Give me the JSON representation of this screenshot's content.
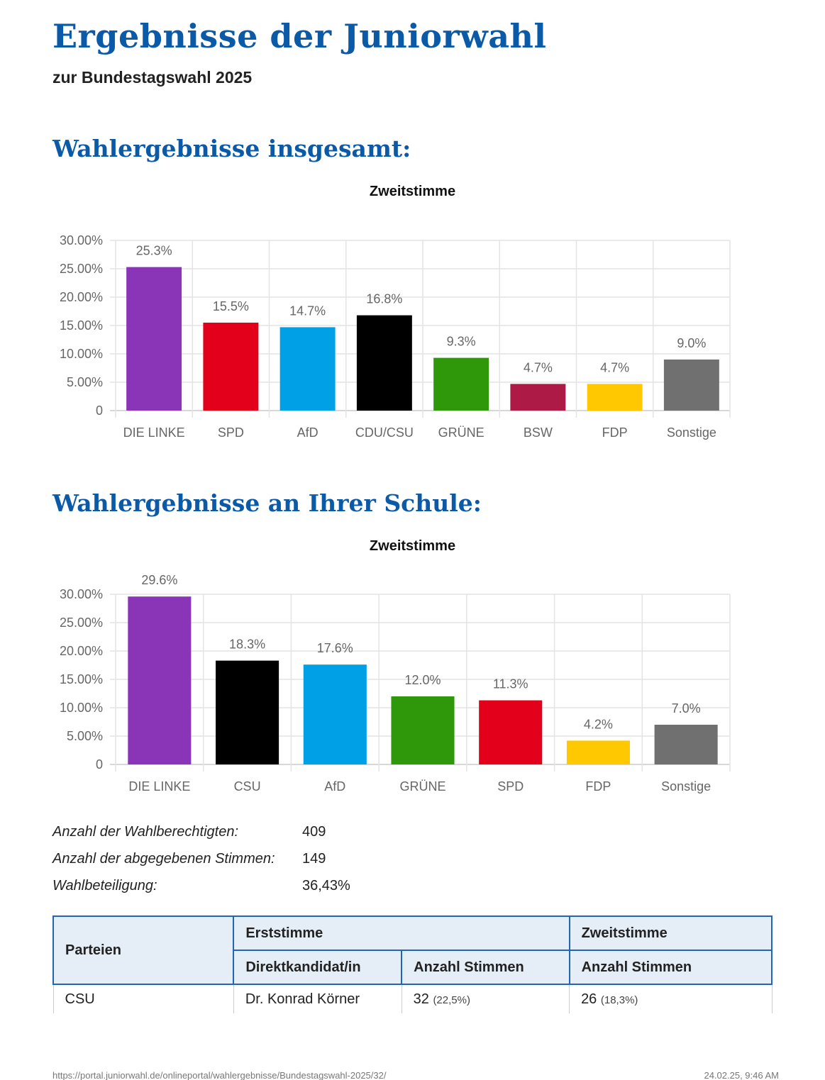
{
  "header": {
    "title": "Ergebnisse der Juniorwahl",
    "subtitle": "zur Bundestagswahl 2025"
  },
  "section1": {
    "heading": "Wahlergebnisse insgesamt:"
  },
  "section2": {
    "heading": "Wahlergebnisse an Ihrer Schule:"
  },
  "chart_data": [
    {
      "type": "bar",
      "title": "Zweitstimme",
      "xlabel": "",
      "ylabel": "",
      "ylim": [
        0,
        30
      ],
      "grid": true,
      "yticks": [
        "0",
        "5.00%",
        "10.00%",
        "15.00%",
        "20.00%",
        "25.00%",
        "30.00%"
      ],
      "categories": [
        "DIE LINKE",
        "SPD",
        "AfD",
        "CDU/CSU",
        "GRÜNE",
        "BSW",
        "FDP",
        "Sonstige"
      ],
      "values": [
        25.3,
        15.5,
        14.7,
        16.8,
        9.3,
        4.7,
        4.7,
        9.0
      ],
      "labels": [
        "25.3%",
        "15.5%",
        "14.7%",
        "16.8%",
        "9.3%",
        "4.7%",
        "4.7%",
        "9.0%"
      ],
      "colors": [
        "#8a35b8",
        "#e3001b",
        "#00a0e6",
        "#000000",
        "#2f980a",
        "#ad1a45",
        "#ffc800",
        "#707070"
      ]
    },
    {
      "type": "bar",
      "title": "Zweitstimme",
      "xlabel": "",
      "ylabel": "",
      "ylim": [
        0,
        30
      ],
      "grid": true,
      "yticks": [
        "0",
        "5.00%",
        "10.00%",
        "15.00%",
        "20.00%",
        "25.00%",
        "30.00%"
      ],
      "categories": [
        "DIE LINKE",
        "CSU",
        "AfD",
        "GRÜNE",
        "SPD",
        "FDP",
        "Sonstige"
      ],
      "values": [
        29.6,
        18.3,
        17.6,
        12.0,
        11.3,
        4.2,
        7.0
      ],
      "labels": [
        "29.6%",
        "18.3%",
        "17.6%",
        "12.0%",
        "11.3%",
        "4.2%",
        "7.0%"
      ],
      "colors": [
        "#8a35b8",
        "#000000",
        "#00a0e6",
        "#2f980a",
        "#e3001b",
        "#ffc800",
        "#707070"
      ]
    }
  ],
  "stats": [
    {
      "label": "Anzahl der Wahlberechtigten:",
      "value": "409"
    },
    {
      "label": "Anzahl der abgegebenen Stimmen:",
      "value": "149"
    },
    {
      "label": "Wahlbeteiligung:",
      "value": "36,43%"
    }
  ],
  "table": {
    "h_parteien": "Parteien",
    "h_erst": "Erststimme",
    "h_zweit": "Zweitstimme",
    "h_kandidat": "Direktkandidat/in",
    "h_anzahl1": "Anzahl Stimmen",
    "h_anzahl2": "Anzahl Stimmen",
    "rows": [
      {
        "partei": "CSU",
        "kandidat": "Dr. Konrad Körner",
        "erst": "32",
        "erst_pct": "(22,5%)",
        "zweit": "26",
        "zweit_pct": "(18,3%)"
      }
    ]
  },
  "footer": {
    "url": "https://portal.juniorwahl.de/onlineportal/wahlergebnisse/Bundestagswahl-2025/32/",
    "datetime": "24.02.25, 9:46 AM"
  }
}
